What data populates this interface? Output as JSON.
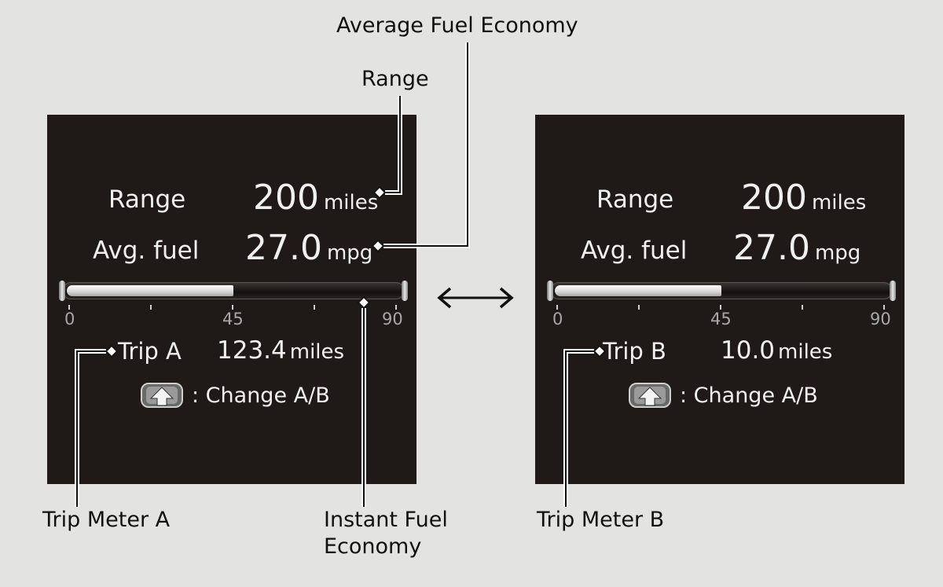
{
  "callouts": {
    "average_fuel_economy": "Average Fuel Economy",
    "range": "Range",
    "trip_meter_a": "Trip Meter A",
    "instant_fuel_economy_line1": "Instant Fuel",
    "instant_fuel_economy_line2": "Economy",
    "trip_meter_b": "Trip Meter B"
  },
  "panel_a": {
    "range_label": "Range",
    "range_value": "200",
    "range_unit": "miles",
    "avg_label": "Avg. fuel",
    "avg_value": "27.0",
    "avg_unit": "mpg",
    "gauge": {
      "min": 0,
      "max": 90,
      "value": 45,
      "tick_labels": [
        "0",
        "45",
        "90"
      ]
    },
    "trip_label": "Trip A",
    "trip_value": "123.4",
    "trip_unit": "miles",
    "change_text": ": Change A/B"
  },
  "panel_b": {
    "range_label": "Range",
    "range_value": "200",
    "range_unit": "miles",
    "avg_label": "Avg. fuel",
    "avg_value": "27.0",
    "avg_unit": "mpg",
    "gauge": {
      "min": 0,
      "max": 90,
      "value": 45,
      "tick_labels": [
        "0",
        "45",
        "90"
      ]
    },
    "trip_label": "Trip B",
    "trip_value": "10.0",
    "trip_unit": "miles",
    "change_text": ": Change A/B"
  },
  "icons": {
    "toggle_arrow": "double-arrow-icon",
    "change_button": "steering-button-icon"
  },
  "colors": {
    "background": "#e3e3e1",
    "panel": "#1f1a18",
    "panel_text": "#f0f0f0",
    "tick_text": "#a8a8a8"
  }
}
